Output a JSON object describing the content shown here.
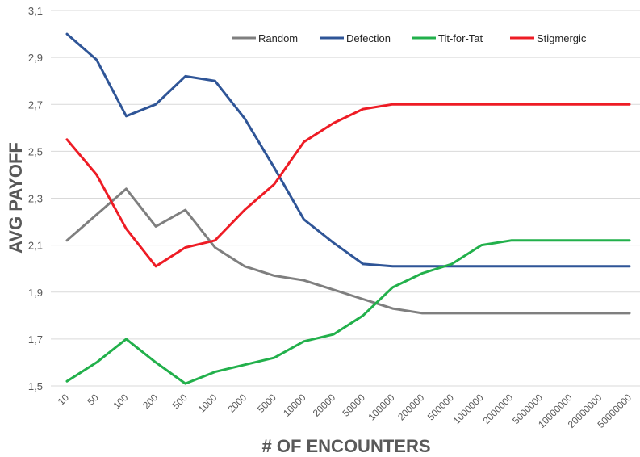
{
  "chart_data": {
    "type": "line",
    "xlabel": "# OF ENCOUNTERS",
    "ylabel": "AVG PAYOFF",
    "ylim": [
      1.5,
      3.1
    ],
    "yticks": [
      "1,5",
      "1,7",
      "1,9",
      "2,1",
      "2,3",
      "2,5",
      "2,7",
      "2,9",
      "3,1"
    ],
    "grid": "horizontal",
    "legend": "top",
    "categories": [
      "10",
      "50",
      "100",
      "200",
      "500",
      "1000",
      "2000",
      "5000",
      "10000",
      "20000",
      "50000",
      "100000",
      "200000",
      "500000",
      "1000000",
      "2000000",
      "5000000",
      "10000000",
      "20000000",
      "50000000"
    ],
    "series": [
      {
        "name": "Random",
        "color": "#7f7f7f",
        "values": [
          2.12,
          2.23,
          2.34,
          2.18,
          2.25,
          2.09,
          2.01,
          1.97,
          1.95,
          1.91,
          1.87,
          1.83,
          1.81,
          1.81,
          1.81,
          1.81,
          1.81,
          1.81,
          1.81,
          1.81
        ]
      },
      {
        "name": "Defection",
        "color": "#2f5597",
        "values": [
          3.0,
          2.89,
          2.65,
          2.7,
          2.82,
          2.8,
          2.64,
          2.43,
          2.21,
          2.11,
          2.02,
          2.01,
          2.01,
          2.01,
          2.01,
          2.01,
          2.01,
          2.01,
          2.01,
          2.01
        ]
      },
      {
        "name": "Tit-for-Tat",
        "color": "#22b04b",
        "values": [
          1.52,
          1.6,
          1.7,
          1.6,
          1.51,
          1.56,
          1.59,
          1.62,
          1.69,
          1.72,
          1.8,
          1.92,
          1.98,
          2.02,
          2.1,
          2.12,
          2.12,
          2.12,
          2.12,
          2.12
        ]
      },
      {
        "name": "Stigmergic",
        "color": "#ee1c25",
        "values": [
          2.55,
          2.4,
          2.17,
          2.01,
          2.09,
          2.12,
          2.25,
          2.36,
          2.54,
          2.62,
          2.68,
          2.7,
          2.7,
          2.7,
          2.7,
          2.7,
          2.7,
          2.7,
          2.7,
          2.7
        ]
      }
    ]
  }
}
